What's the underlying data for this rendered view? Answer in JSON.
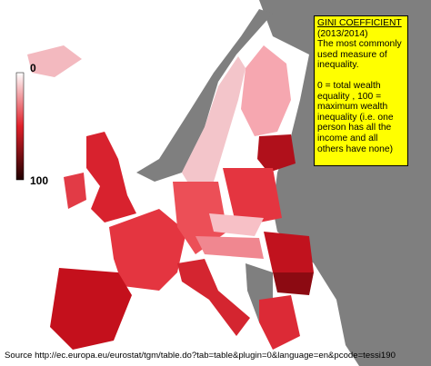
{
  "legend": {
    "min": "0",
    "max": "100"
  },
  "info_box": {
    "title": "GINI COEFFICIENT",
    "period": "(2013/2014)",
    "description": "The most commonly used measure of inequality.",
    "scale_note": "0 = total wealth equality , 100 = maximum wealth inequality (i.e. one person has all the income and all others have none)"
  },
  "source": "Source http://ec.europa.eu/eurostat/tgm/table.do?tab=table&plugin=0&language=en&pcode=tessi190"
}
